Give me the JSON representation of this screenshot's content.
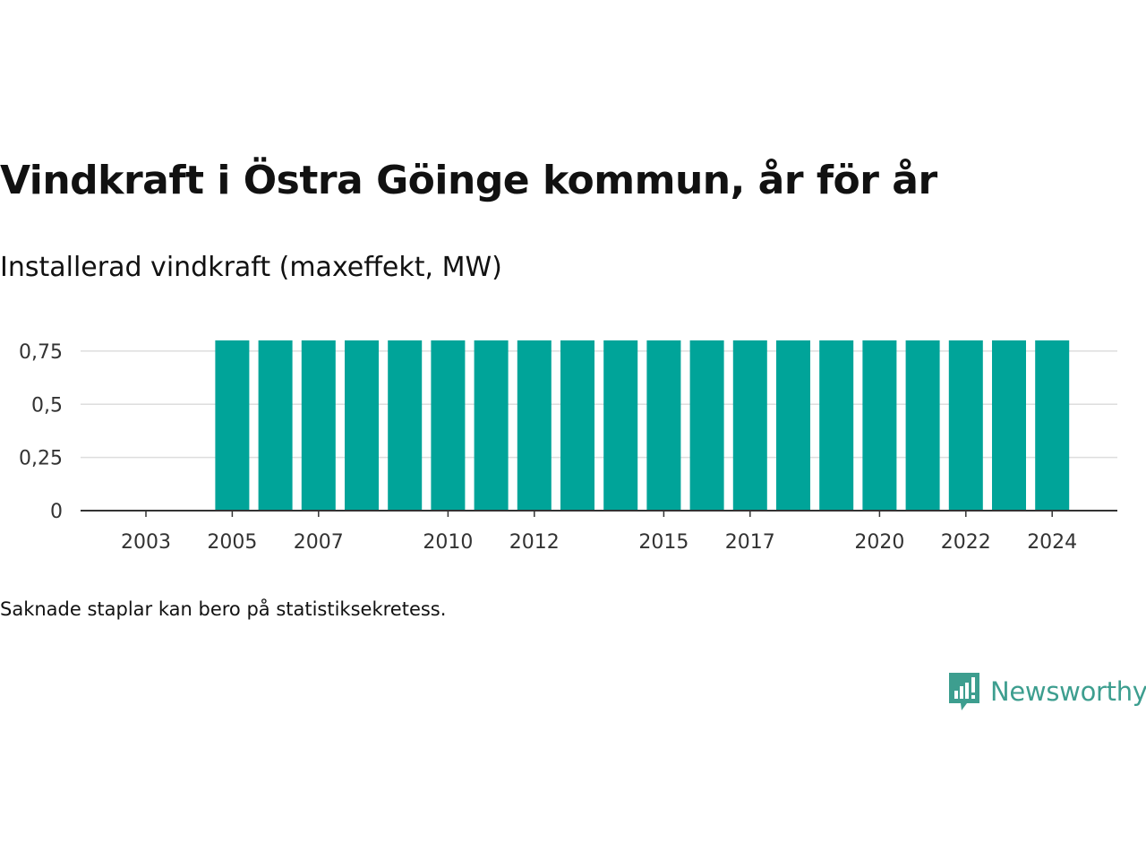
{
  "header": {
    "title": "Vindkraft i Östra Göinge kommun, år för år",
    "subtitle": "Installerad vindkraft (maxeffekt, MW)"
  },
  "footer": {
    "note": "Saknade staplar kan bero på statistiksekretess.",
    "brand": "Newsworthy",
    "brand_icon": "bar-chart-speech-bubble-icon"
  },
  "colors": {
    "bar": "#00a499",
    "grid": "#dddddd",
    "axis": "#333333",
    "brand": "#3d9e8f"
  },
  "chart_data": {
    "type": "bar",
    "title": "Vindkraft i Östra Göinge kommun, år för år",
    "subtitle": "Installerad vindkraft (maxeffekt, MW)",
    "categories": [
      "2003",
      "2004",
      "2005",
      "2006",
      "2007",
      "2008",
      "2009",
      "2010",
      "2011",
      "2012",
      "2013",
      "2014",
      "2015",
      "2016",
      "2017",
      "2018",
      "2019",
      "2020",
      "2021",
      "2022",
      "2023",
      "2024"
    ],
    "values": [
      null,
      null,
      0.8,
      0.8,
      0.8,
      0.8,
      0.8,
      0.8,
      0.8,
      0.8,
      0.8,
      0.8,
      0.8,
      0.8,
      0.8,
      0.8,
      0.8,
      0.8,
      0.8,
      0.8,
      0.8,
      0.8
    ],
    "x_tick_labels": [
      "2003",
      "2005",
      "2007",
      "2010",
      "2012",
      "2015",
      "2017",
      "2020",
      "2022",
      "2024"
    ],
    "y_ticks": [
      0,
      0.25,
      0.5,
      0.75
    ],
    "y_tick_labels": [
      "0",
      "0,25",
      "0,5",
      "0,75"
    ],
    "ylim": [
      0,
      0.8
    ],
    "grid": "horizontal",
    "legend": "none"
  }
}
